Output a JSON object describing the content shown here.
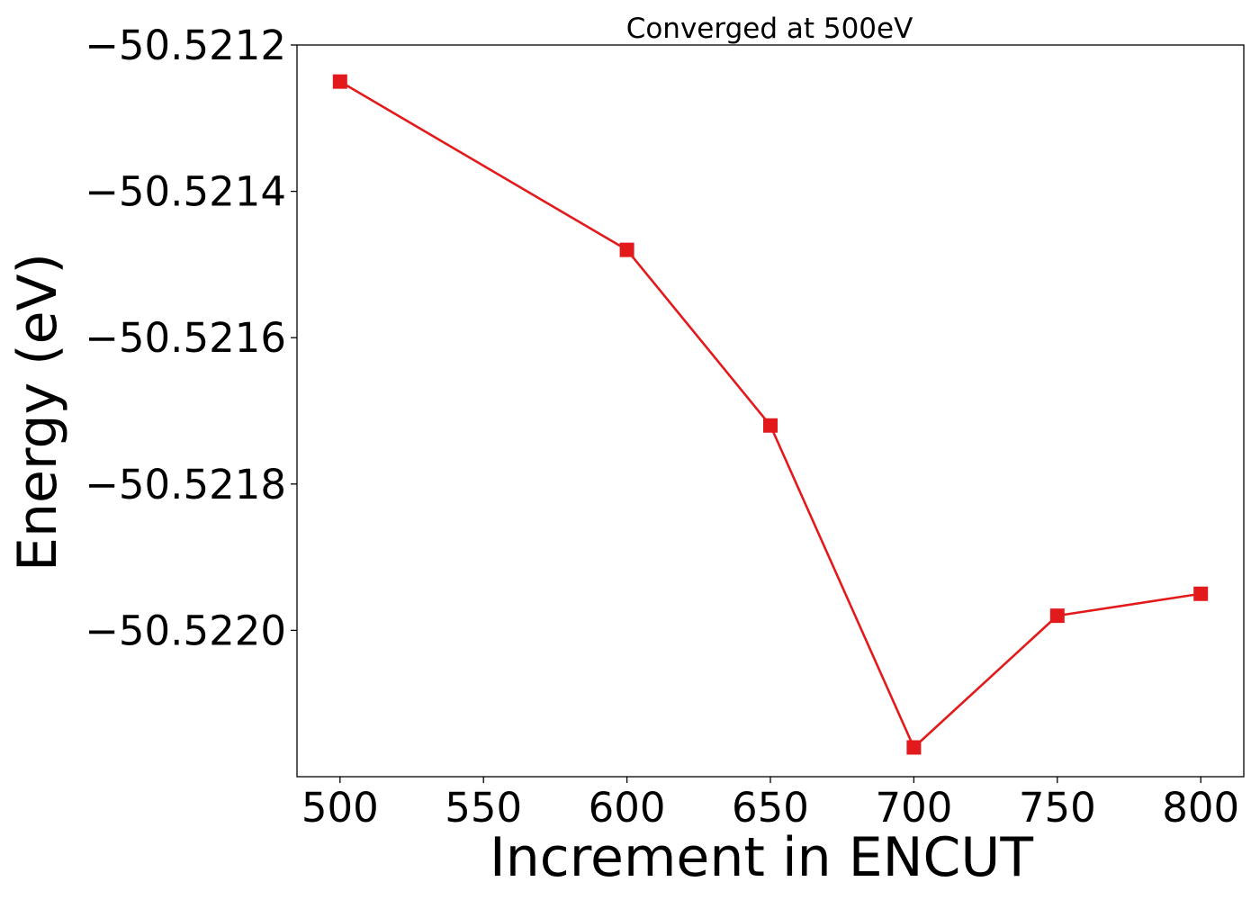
{
  "chart_data": {
    "type": "line",
    "title": "Converged at 500eV",
    "xlabel": "Increment in ENCUT",
    "ylabel": "Energy (eV)",
    "x": [
      500,
      600,
      650,
      700,
      750,
      800
    ],
    "series": [
      {
        "values": [
          -50.52125,
          -50.52148,
          -50.52172,
          -50.52216,
          -50.52198,
          -50.52195
        ],
        "color": "#e31a1c",
        "marker": "square"
      }
    ],
    "xlim": [
      485,
      815
    ],
    "ylim": [
      -50.5222,
      -50.5212
    ],
    "xticks": [
      500,
      550,
      600,
      650,
      700,
      750,
      800
    ],
    "xtick_labels": [
      "500",
      "550",
      "600",
      "650",
      "700",
      "750",
      "800"
    ],
    "yticks": [
      -50.5212,
      -50.5214,
      -50.5216,
      -50.5218,
      -50.522
    ],
    "ytick_labels": [
      "−50.5212",
      "−50.5214",
      "−50.5216",
      "−50.5218",
      "−50.5220"
    ],
    "grid": false,
    "legend": "none"
  }
}
